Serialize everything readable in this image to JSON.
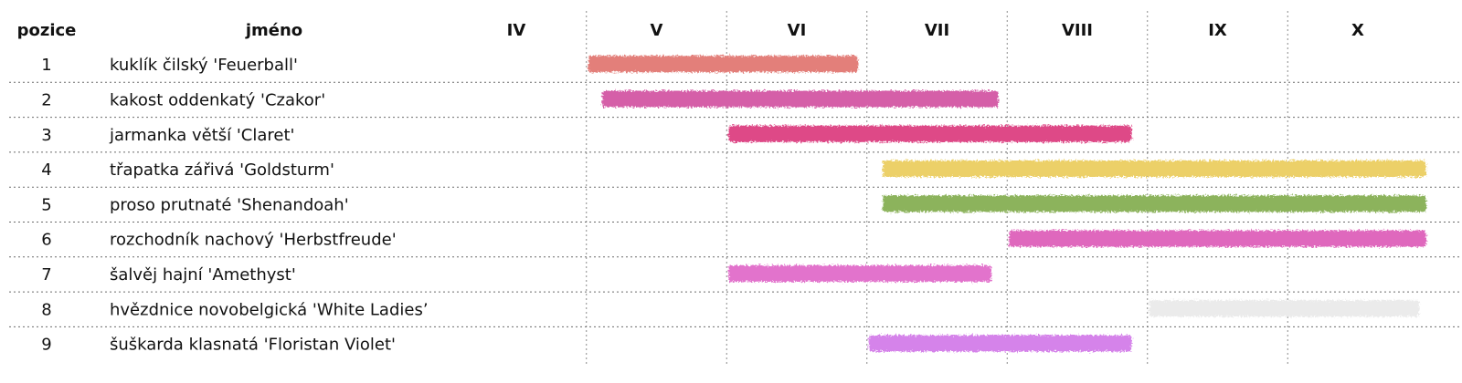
{
  "headers": {
    "position": "pozice",
    "name": "jméno"
  },
  "chart_data": {
    "type": "bar",
    "subtype": "gantt-bloom-period",
    "months": [
      "IV",
      "V",
      "VI",
      "VII",
      "VIII",
      "IX",
      "X"
    ],
    "grid": true,
    "rows": [
      {
        "position": "1",
        "name": "kuklík čilský 'Feuerball'",
        "start": 5.0,
        "end": 6.95,
        "color": "#e37f7a"
      },
      {
        "position": "2",
        "name": "kakost oddenkatý 'Czakor'",
        "start": 5.1,
        "end": 7.95,
        "color": "#d55fa8"
      },
      {
        "position": "3",
        "name": "jarmanka větší 'Claret'",
        "start": 6.0,
        "end": 8.9,
        "color": "#de4887"
      },
      {
        "position": "4",
        "name": "třapatka zářivá 'Goldsturm'",
        "start": 7.1,
        "end": 11.0,
        "color": "#ecd068"
      },
      {
        "position": "5",
        "name": "proso prutnaté 'Shenandoah'",
        "start": 7.1,
        "end": 11.0,
        "color": "#8cb35c"
      },
      {
        "position": "6",
        "name": "rozchodník nachový 'Herbstfreude'",
        "start": 8.0,
        "end": 11.0,
        "color": "#df68bd"
      },
      {
        "position": "7",
        "name": "šalvěj hajní 'Amethyst'",
        "start": 6.0,
        "end": 7.9,
        "color": "#e273cc"
      },
      {
        "position": "8",
        "name": "hvězdnice novobelgická 'White Ladies’",
        "start": 9.0,
        "end": 10.95,
        "color": "#ebebeb"
      },
      {
        "position": "9",
        "name": "šuškarda klasnatá 'Floristan Violet'",
        "start": 7.0,
        "end": 8.9,
        "color": "#d583ea"
      }
    ]
  }
}
